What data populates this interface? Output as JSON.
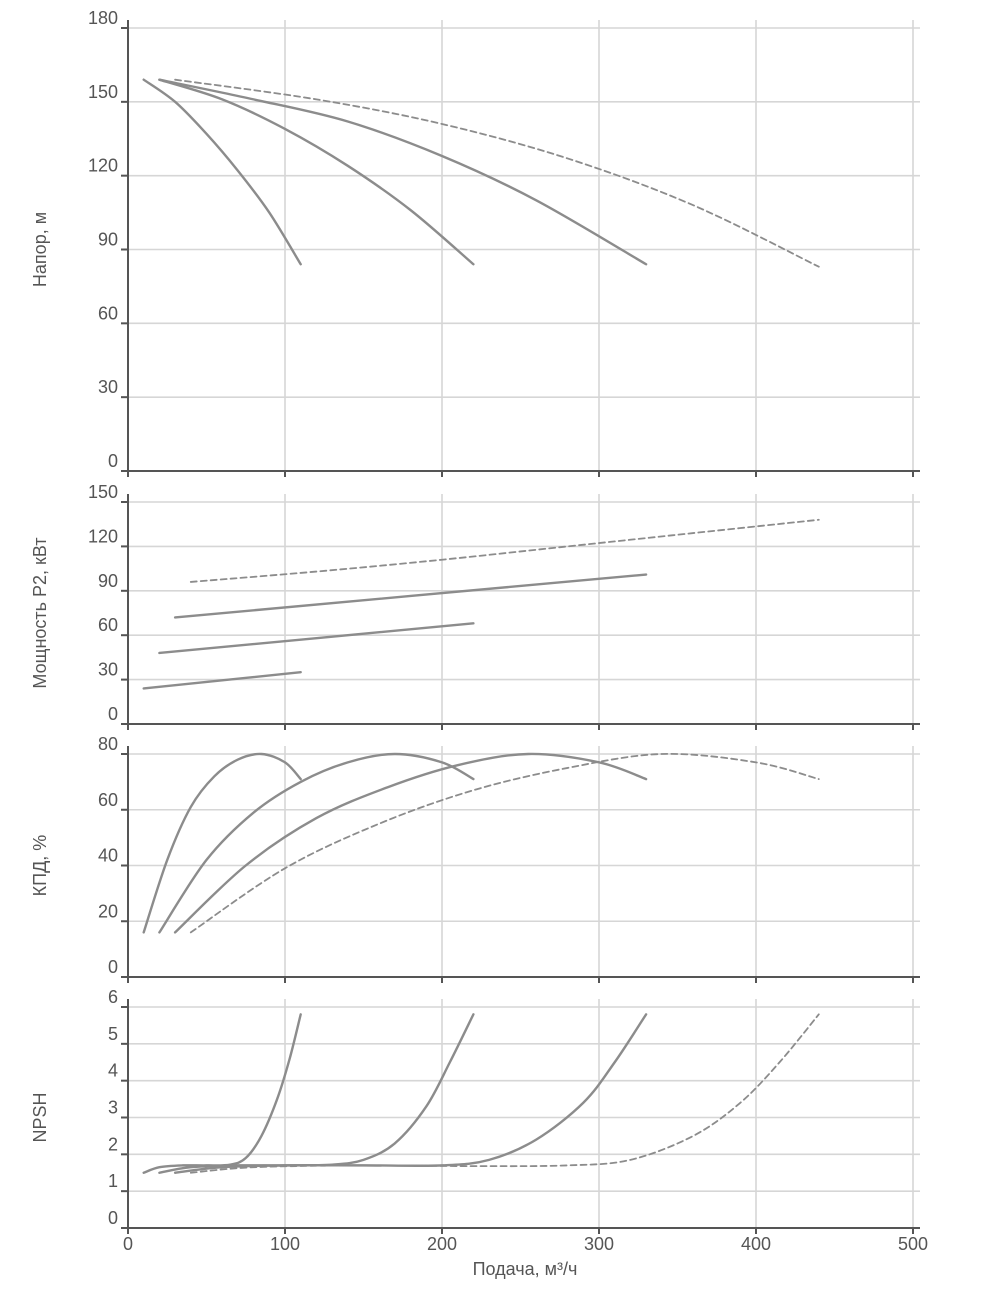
{
  "chart_data": {
    "type": "line",
    "x_axis": {
      "label": "Подача, м³/ч",
      "range": [
        0,
        500
      ],
      "ticks": [
        0,
        100,
        200,
        300,
        400,
        500
      ],
      "tick_labels": [
        "0",
        "100",
        "200",
        "300",
        "400",
        "500"
      ],
      "grid": true
    },
    "colors": {
      "curve": "#8c8c8c",
      "grid": "#d6d6d6",
      "axis": "#555555",
      "text": "#555555"
    },
    "panels": [
      {
        "id": "head",
        "ylabel": "Напор, м",
        "ylim": [
          0,
          180
        ],
        "yticks": [
          0,
          30,
          60,
          90,
          120,
          150,
          180
        ],
        "ytick_labels": [
          "0",
          "30",
          "60",
          "90",
          "120",
          "150",
          "180"
        ],
        "series": [
          {
            "name": "curve-1",
            "style": "solid",
            "x": [
              10,
              30,
              50,
              70,
              90,
              110
            ],
            "y": [
              159,
              150,
              137,
              122,
              105,
              84
            ]
          },
          {
            "name": "curve-2",
            "style": "solid",
            "x": [
              20,
              60,
              100,
              140,
              180,
              220
            ],
            "y": [
              159,
              151,
              139,
              124,
              106,
              84
            ]
          },
          {
            "name": "curve-3",
            "style": "solid",
            "x": [
              20,
              80,
              140,
              200,
              260,
              330
            ],
            "y": [
              159,
              151,
              142,
              128,
              110,
              84
            ]
          },
          {
            "name": "curve-4",
            "style": "dashed",
            "x": [
              30,
              120,
              200,
              280,
              360,
              440
            ],
            "y": [
              159,
              151,
              141,
              127,
              108,
              83
            ]
          }
        ]
      },
      {
        "id": "power",
        "ylabel": "Мощность P2, кВт",
        "ylim": [
          0,
          150
        ],
        "yticks": [
          0,
          30,
          60,
          90,
          120,
          150
        ],
        "ytick_labels": [
          "0",
          "30",
          "60",
          "90",
          "120",
          "150"
        ],
        "series": [
          {
            "name": "curve-1",
            "style": "solid",
            "x": [
              10,
              110
            ],
            "y": [
              24,
              35
            ]
          },
          {
            "name": "curve-2",
            "style": "solid",
            "x": [
              20,
              220
            ],
            "y": [
              48,
              68
            ]
          },
          {
            "name": "curve-3",
            "style": "solid",
            "x": [
              30,
              330
            ],
            "y": [
              72,
              101
            ]
          },
          {
            "name": "curve-4",
            "style": "dashed",
            "x": [
              40,
              120,
              200,
              280,
              360,
              440
            ],
            "y": [
              96,
              103,
              111,
              120,
              129,
              138
            ]
          }
        ]
      },
      {
        "id": "efficiency",
        "ylabel": "КПД, %",
        "ylim": [
          0,
          80
        ],
        "yticks": [
          0,
          20,
          40,
          60,
          80
        ],
        "ytick_labels": [
          "0",
          "20",
          "40",
          "60",
          "80"
        ],
        "series": [
          {
            "name": "curve-1",
            "style": "solid",
            "x": [
              10,
              25,
              40,
              55,
              70,
              85,
              100,
              110
            ],
            "y": [
              16,
              42,
              61,
              72,
              78,
              80,
              77,
              71
            ]
          },
          {
            "name": "curve-2",
            "style": "solid",
            "x": [
              20,
              50,
              80,
              110,
              140,
              170,
              200,
              220
            ],
            "y": [
              16,
              42,
              59,
              70,
              77,
              80,
              77,
              71
            ]
          },
          {
            "name": "curve-3",
            "style": "solid",
            "x": [
              30,
              75,
              120,
              165,
              210,
              255,
              300,
              330
            ],
            "y": [
              16,
              40,
              57,
              68,
              76,
              80,
              77,
              71
            ]
          },
          {
            "name": "curve-4",
            "style": "dashed",
            "x": [
              40,
              100,
              160,
              220,
              280,
              340,
              400,
              440
            ],
            "y": [
              16,
              39,
              55,
              67,
              75,
              80,
              77,
              71
            ]
          }
        ]
      },
      {
        "id": "npsh",
        "ylabel": "NPSH",
        "ylim": [
          0,
          6
        ],
        "yticks": [
          0,
          1,
          2,
          3,
          4,
          5,
          6
        ],
        "ytick_labels": [
          "0",
          "1",
          "2",
          "3",
          "4",
          "5",
          "6"
        ],
        "series": [
          {
            "name": "curve-1",
            "style": "solid",
            "x": [
              10,
              20,
              35,
              50,
              65,
              75,
              85,
              95,
              103,
              110
            ],
            "y": [
              1.5,
              1.65,
              1.7,
              1.7,
              1.72,
              1.9,
              2.5,
              3.5,
              4.6,
              5.8
            ]
          },
          {
            "name": "curve-2",
            "style": "solid",
            "x": [
              20,
              40,
              70,
              100,
              130,
              150,
              170,
              190,
              205,
              220
            ],
            "y": [
              1.5,
              1.65,
              1.7,
              1.7,
              1.72,
              1.85,
              2.3,
              3.3,
              4.5,
              5.8
            ]
          },
          {
            "name": "curve-3",
            "style": "solid",
            "x": [
              30,
              60,
              100,
              150,
              200,
              230,
              260,
              290,
              310,
              330
            ],
            "y": [
              1.5,
              1.65,
              1.7,
              1.7,
              1.7,
              1.85,
              2.4,
              3.4,
              4.5,
              5.8
            ]
          },
          {
            "name": "curve-4",
            "style": "dashed",
            "x": [
              40,
              80,
              150,
              220,
              280,
              320,
              360,
              390,
              415,
              440
            ],
            "y": [
              1.5,
              1.65,
              1.7,
              1.68,
              1.7,
              1.85,
              2.5,
              3.4,
              4.5,
              5.8
            ]
          }
        ]
      }
    ]
  }
}
